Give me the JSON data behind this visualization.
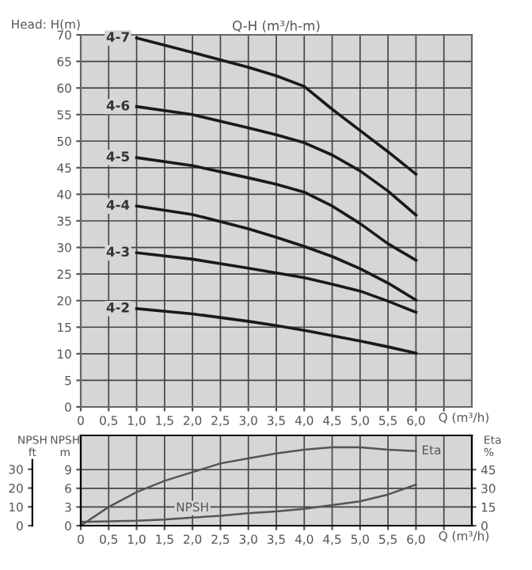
{
  "chart_data": [
    {
      "type": "line",
      "title": "Q-H (m³/h-m)",
      "ylabel": "Head: H(m)",
      "xlabel": "Q (m³/h)",
      "x": [
        1.0,
        2.0,
        3.0,
        3.5,
        4.0,
        4.5,
        5.0,
        5.5,
        6.0
      ],
      "series": [
        {
          "name": "4-7",
          "color": "#1a1a1a",
          "values": [
            69.4,
            66.7,
            63.9,
            62.3,
            60.3,
            56.0,
            52.0,
            48.0,
            43.8
          ]
        },
        {
          "name": "4-6",
          "color": "#1a1a1a",
          "values": [
            56.5,
            55.0,
            52.5,
            51.2,
            49.7,
            47.4,
            44.4,
            40.6,
            36.1
          ]
        },
        {
          "name": "4-5",
          "color": "#1a1a1a",
          "values": [
            46.9,
            45.4,
            43.1,
            41.9,
            40.4,
            37.8,
            34.5,
            30.7,
            27.6
          ]
        },
        {
          "name": "4-4",
          "color": "#1a1a1a",
          "values": [
            37.8,
            36.2,
            33.5,
            31.9,
            30.2,
            28.3,
            26.0,
            23.3,
            20.1
          ]
        },
        {
          "name": "4-3",
          "color": "#1a1a1a",
          "values": [
            29.0,
            27.8,
            26.1,
            25.2,
            24.3,
            23.1,
            21.8,
            19.9,
            17.8
          ]
        },
        {
          "name": "4-2",
          "color": "#1a1a1a",
          "values": [
            18.5,
            17.5,
            16.1,
            15.3,
            14.4,
            13.4,
            12.4,
            11.3,
            10.1
          ]
        }
      ],
      "xlim": [
        0,
        7
      ],
      "ylim": [
        0,
        70
      ],
      "xticks": [
        0,
        {
          "value": 0.5,
          "label": "0,5"
        },
        {
          "value": 1.0,
          "label": "1,0"
        },
        {
          "value": 1.5,
          "label": "1,5"
        },
        {
          "value": 2.0,
          "label": "2,0"
        },
        {
          "value": 2.5,
          "label": "2,5"
        },
        {
          "value": 3.0,
          "label": "3,0"
        },
        {
          "value": 3.5,
          "label": "3,5"
        },
        {
          "value": 4.0,
          "label": "4,0"
        },
        {
          "value": 4.5,
          "label": "4,5"
        },
        {
          "value": 5.0,
          "label": "5,0"
        },
        {
          "value": 5.5,
          "label": "5,5"
        },
        {
          "value": 6.0,
          "label": "6,0"
        },
        {
          "value": 6.5,
          "label": null
        }
      ],
      "yticks": [
        0,
        5,
        10,
        15,
        20,
        25,
        30,
        35,
        40,
        45,
        50,
        55,
        60,
        65,
        70
      ],
      "grid": true,
      "legend": false,
      "marker": "none",
      "line_style": "solid"
    },
    {
      "type": "line",
      "xlabel": "Q (m³/h)",
      "ylabel": "NPSH\nm",
      "y2label": "Eta\n%",
      "y3label": "NPSH\nft",
      "x": [
        0,
        0.5,
        1.0,
        1.5,
        2.0,
        2.5,
        3.0,
        3.5,
        4.0,
        4.5,
        5.0,
        5.5,
        6.0
      ],
      "series": [
        {
          "name": "NPSH",
          "color": "#555555",
          "axis": "y",
          "values": [
            0.6,
            0.7,
            0.8,
            1.0,
            1.3,
            1.6,
            2.0,
            2.3,
            2.7,
            3.3,
            3.9,
            5.0,
            6.6
          ]
        },
        {
          "name": "Eta",
          "color": "#555555",
          "axis": "y2",
          "values": [
            0,
            15,
            27,
            36,
            43,
            50,
            54,
            58,
            61,
            63,
            63,
            61,
            60
          ]
        }
      ],
      "xlim": [
        0,
        7
      ],
      "ylim": [
        0,
        14.5
      ],
      "y2lim": [
        0,
        72.5
      ],
      "y3lim": [
        0,
        48
      ],
      "xticks": [
        0,
        {
          "value": 0.5,
          "label": "0,5"
        },
        {
          "value": 1.0,
          "label": "1,0"
        },
        {
          "value": 1.5,
          "label": "1,5"
        },
        {
          "value": 2.0,
          "label": "2,0"
        },
        {
          "value": 2.5,
          "label": "2,5"
        },
        {
          "value": 3.0,
          "label": "3,0"
        },
        {
          "value": 3.5,
          "label": "3,5"
        },
        {
          "value": 4.0,
          "label": "4,0"
        },
        {
          "value": 4.5,
          "label": "4,5"
        },
        {
          "value": 5.0,
          "label": "5,0"
        },
        {
          "value": 5.5,
          "label": "5,5"
        },
        {
          "value": 6.0,
          "label": "6,0"
        },
        {
          "value": 6.5,
          "label": null
        }
      ],
      "yticks": [
        0,
        3,
        6,
        9
      ],
      "y2ticks": [
        0,
        15,
        30,
        45
      ],
      "y3ticks": [
        0,
        10,
        20,
        30
      ],
      "grid": true,
      "legend": false,
      "marker": "none",
      "line_style": "solid"
    }
  ]
}
